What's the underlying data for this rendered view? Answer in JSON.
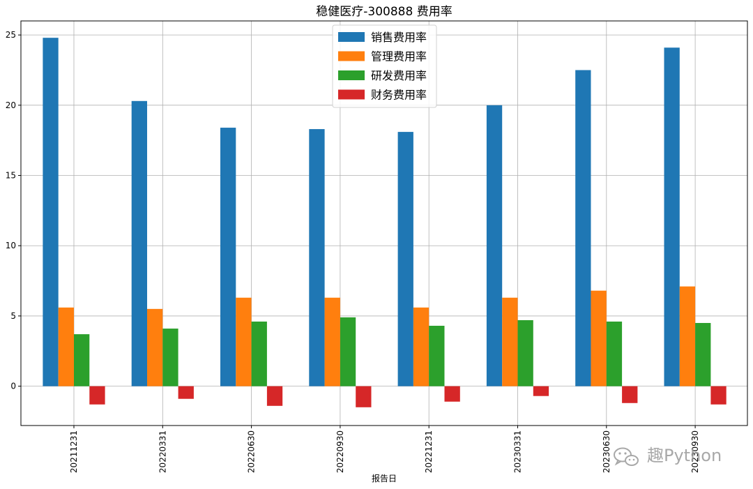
{
  "chart_data": {
    "type": "bar",
    "title": "稳健医疗-300888 费用率",
    "xlabel": "报告日",
    "ylabel": "",
    "ylim": [
      -2.8,
      26
    ],
    "yticks": [
      0,
      5,
      10,
      15,
      20,
      25
    ],
    "grid": true,
    "legend_position": "top-center",
    "categories": [
      "20211231",
      "20220331",
      "20220630",
      "20220930",
      "20221231",
      "20230331",
      "20230630",
      "20230930"
    ],
    "series": [
      {
        "name": "销售费用率",
        "color": "#1f77b4",
        "values": [
          24.8,
          20.3,
          18.4,
          18.3,
          18.1,
          20.0,
          22.5,
          24.1
        ]
      },
      {
        "name": "管理费用率",
        "color": "#ff7f0e",
        "values": [
          5.6,
          5.5,
          6.3,
          6.3,
          5.6,
          6.3,
          6.8,
          7.1
        ]
      },
      {
        "name": "研发费用率",
        "color": "#2ca02c",
        "values": [
          3.7,
          4.1,
          4.6,
          4.9,
          4.3,
          4.7,
          4.6,
          4.5
        ]
      },
      {
        "name": "财务费用率",
        "color": "#d62728",
        "values": [
          -1.3,
          -0.9,
          -1.4,
          -1.5,
          -1.1,
          -0.7,
          -1.2,
          -1.3
        ]
      }
    ]
  },
  "watermark": {
    "text": "趣Python",
    "icon": "wechat-icon"
  }
}
